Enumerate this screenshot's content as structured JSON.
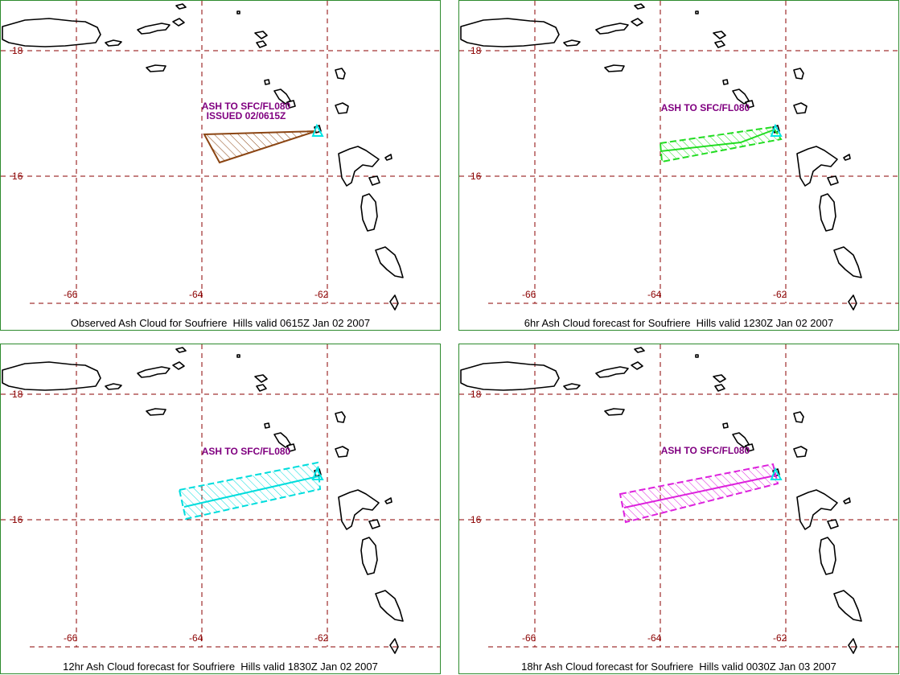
{
  "colors": {
    "grid": "#8b0000",
    "axis_label": "#8b0000",
    "coast": "#000000",
    "annotation": "#800080",
    "border": "#2e8b2e",
    "volcano": "#00e5e5"
  },
  "axes": {
    "lat_labels": [
      "18",
      "16"
    ],
    "lon_labels": [
      "-66",
      "-64",
      "-62"
    ]
  },
  "panels": [
    {
      "caption": "Observed Ash Cloud for Soufriere  Hills valid 0615Z Jan 02 2007",
      "annotation_lines": [
        "ASH TO SFC/FL080",
        "ISSUED 02/0615Z"
      ],
      "cloud_color": "#8b4513",
      "shape": "observed"
    },
    {
      "caption": "6hr Ash Cloud forecast for Soufriere  Hills valid 1230Z Jan 02 2007",
      "annotation_lines": [
        "ASH TO SFC/FL080"
      ],
      "cloud_color": "#22dd22",
      "shape": "f6"
    },
    {
      "caption": "12hr Ash Cloud forecast for Soufriere  Hills valid 1830Z Jan 02 2007",
      "annotation_lines": [
        "ASH TO SFC/FL080"
      ],
      "cloud_color": "#00dddd",
      "shape": "f12"
    },
    {
      "caption": "18hr Ash Cloud forecast for Soufriere  Hills valid 0030Z Jan 03 2007",
      "annotation_lines": [
        "ASH TO SFC/FL080"
      ],
      "cloud_color": "#dd22dd",
      "shape": "f18"
    }
  ]
}
